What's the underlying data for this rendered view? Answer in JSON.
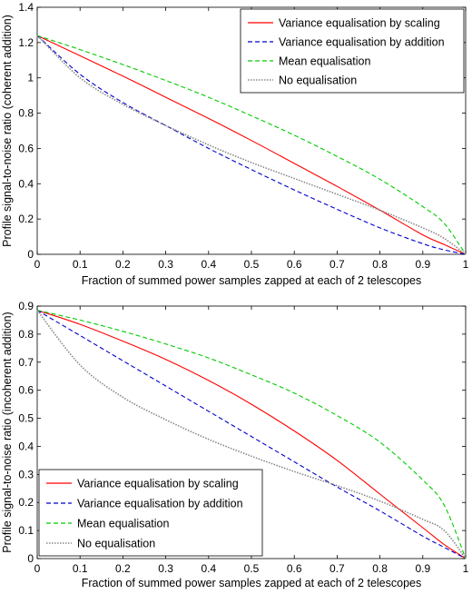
{
  "chart_data": [
    {
      "type": "line",
      "title": "",
      "xlabel": "Fraction of summed power samples zapped at each of 2 telescopes",
      "ylabel": "Profile signal-to-noise ratio (coherent addition)",
      "xlim": [
        0,
        1
      ],
      "ylim": [
        0,
        1.4
      ],
      "xticks": [
        "0",
        "0.1",
        "0.2",
        "0.3",
        "0.4",
        "0.5",
        "0.6",
        "0.7",
        "0.8",
        "0.9",
        "1"
      ],
      "yticks": [
        "0",
        "0.2",
        "0.4",
        "0.6",
        "0.8",
        "1",
        "1.2",
        "1.4"
      ],
      "grid": false,
      "legend_position": "top-right",
      "x": [
        0,
        0.1,
        0.2,
        0.3,
        0.4,
        0.5,
        0.6,
        0.7,
        0.8,
        0.9,
        0.95,
        1
      ],
      "series": [
        {
          "name": "Variance equalisation by scaling",
          "color": "#ff0000",
          "dash": "solid",
          "values": [
            1.24,
            1.125,
            1.01,
            0.89,
            0.77,
            0.645,
            0.515,
            0.385,
            0.25,
            0.11,
            0.055,
            0
          ]
        },
        {
          "name": "Variance equalisation by addition",
          "color": "#0000cc",
          "dash": "dashed",
          "values": [
            1.24,
            1.02,
            0.86,
            0.73,
            0.6,
            0.48,
            0.365,
            0.255,
            0.15,
            0.06,
            0.025,
            0
          ]
        },
        {
          "name": "Mean equalisation",
          "color": "#00cc00",
          "dash": "dashed",
          "values": [
            1.24,
            1.16,
            1.075,
            0.985,
            0.89,
            0.785,
            0.675,
            0.555,
            0.425,
            0.27,
            0.175,
            0
          ]
        },
        {
          "name": "No equalisation",
          "color": "#888888",
          "dash": "dotted",
          "values": [
            1.24,
            1.0,
            0.85,
            0.73,
            0.62,
            0.52,
            0.43,
            0.34,
            0.25,
            0.15,
            0.09,
            0
          ]
        }
      ]
    },
    {
      "type": "line",
      "title": "",
      "xlabel": "Fraction of summed power samples zapped at each of 2 telescopes",
      "ylabel": "Profile signal-to-noise ratio (incoherent addition)",
      "xlim": [
        0,
        1
      ],
      "ylim": [
        0,
        0.9
      ],
      "xticks": [
        "0",
        "0.1",
        "0.2",
        "0.3",
        "0.4",
        "0.5",
        "0.6",
        "0.7",
        "0.8",
        "0.9",
        "1"
      ],
      "yticks": [
        "0",
        "0.1",
        "0.2",
        "0.3",
        "0.4",
        "0.5",
        "0.6",
        "0.7",
        "0.8",
        "0.9"
      ],
      "grid": false,
      "legend_position": "bottom-left",
      "x": [
        0,
        0.1,
        0.2,
        0.3,
        0.4,
        0.5,
        0.6,
        0.7,
        0.8,
        0.9,
        0.95,
        1
      ],
      "series": [
        {
          "name": "Variance equalisation by scaling",
          "color": "#ff0000",
          "dash": "solid",
          "values": [
            0.885,
            0.835,
            0.775,
            0.71,
            0.635,
            0.55,
            0.455,
            0.35,
            0.23,
            0.11,
            0.05,
            0
          ]
        },
        {
          "name": "Variance equalisation by addition",
          "color": "#0000cc",
          "dash": "dashed",
          "values": [
            0.885,
            0.795,
            0.705,
            0.615,
            0.525,
            0.435,
            0.345,
            0.255,
            0.17,
            0.08,
            0.04,
            0
          ]
        },
        {
          "name": "Mean equalisation",
          "color": "#00cc00",
          "dash": "dashed",
          "values": [
            0.885,
            0.85,
            0.81,
            0.765,
            0.715,
            0.655,
            0.59,
            0.51,
            0.415,
            0.28,
            0.19,
            0
          ]
        },
        {
          "name": "No equalisation",
          "color": "#888888",
          "dash": "dotted",
          "values": [
            0.885,
            0.69,
            0.575,
            0.495,
            0.425,
            0.365,
            0.31,
            0.26,
            0.205,
            0.14,
            0.1,
            0
          ]
        }
      ]
    }
  ]
}
